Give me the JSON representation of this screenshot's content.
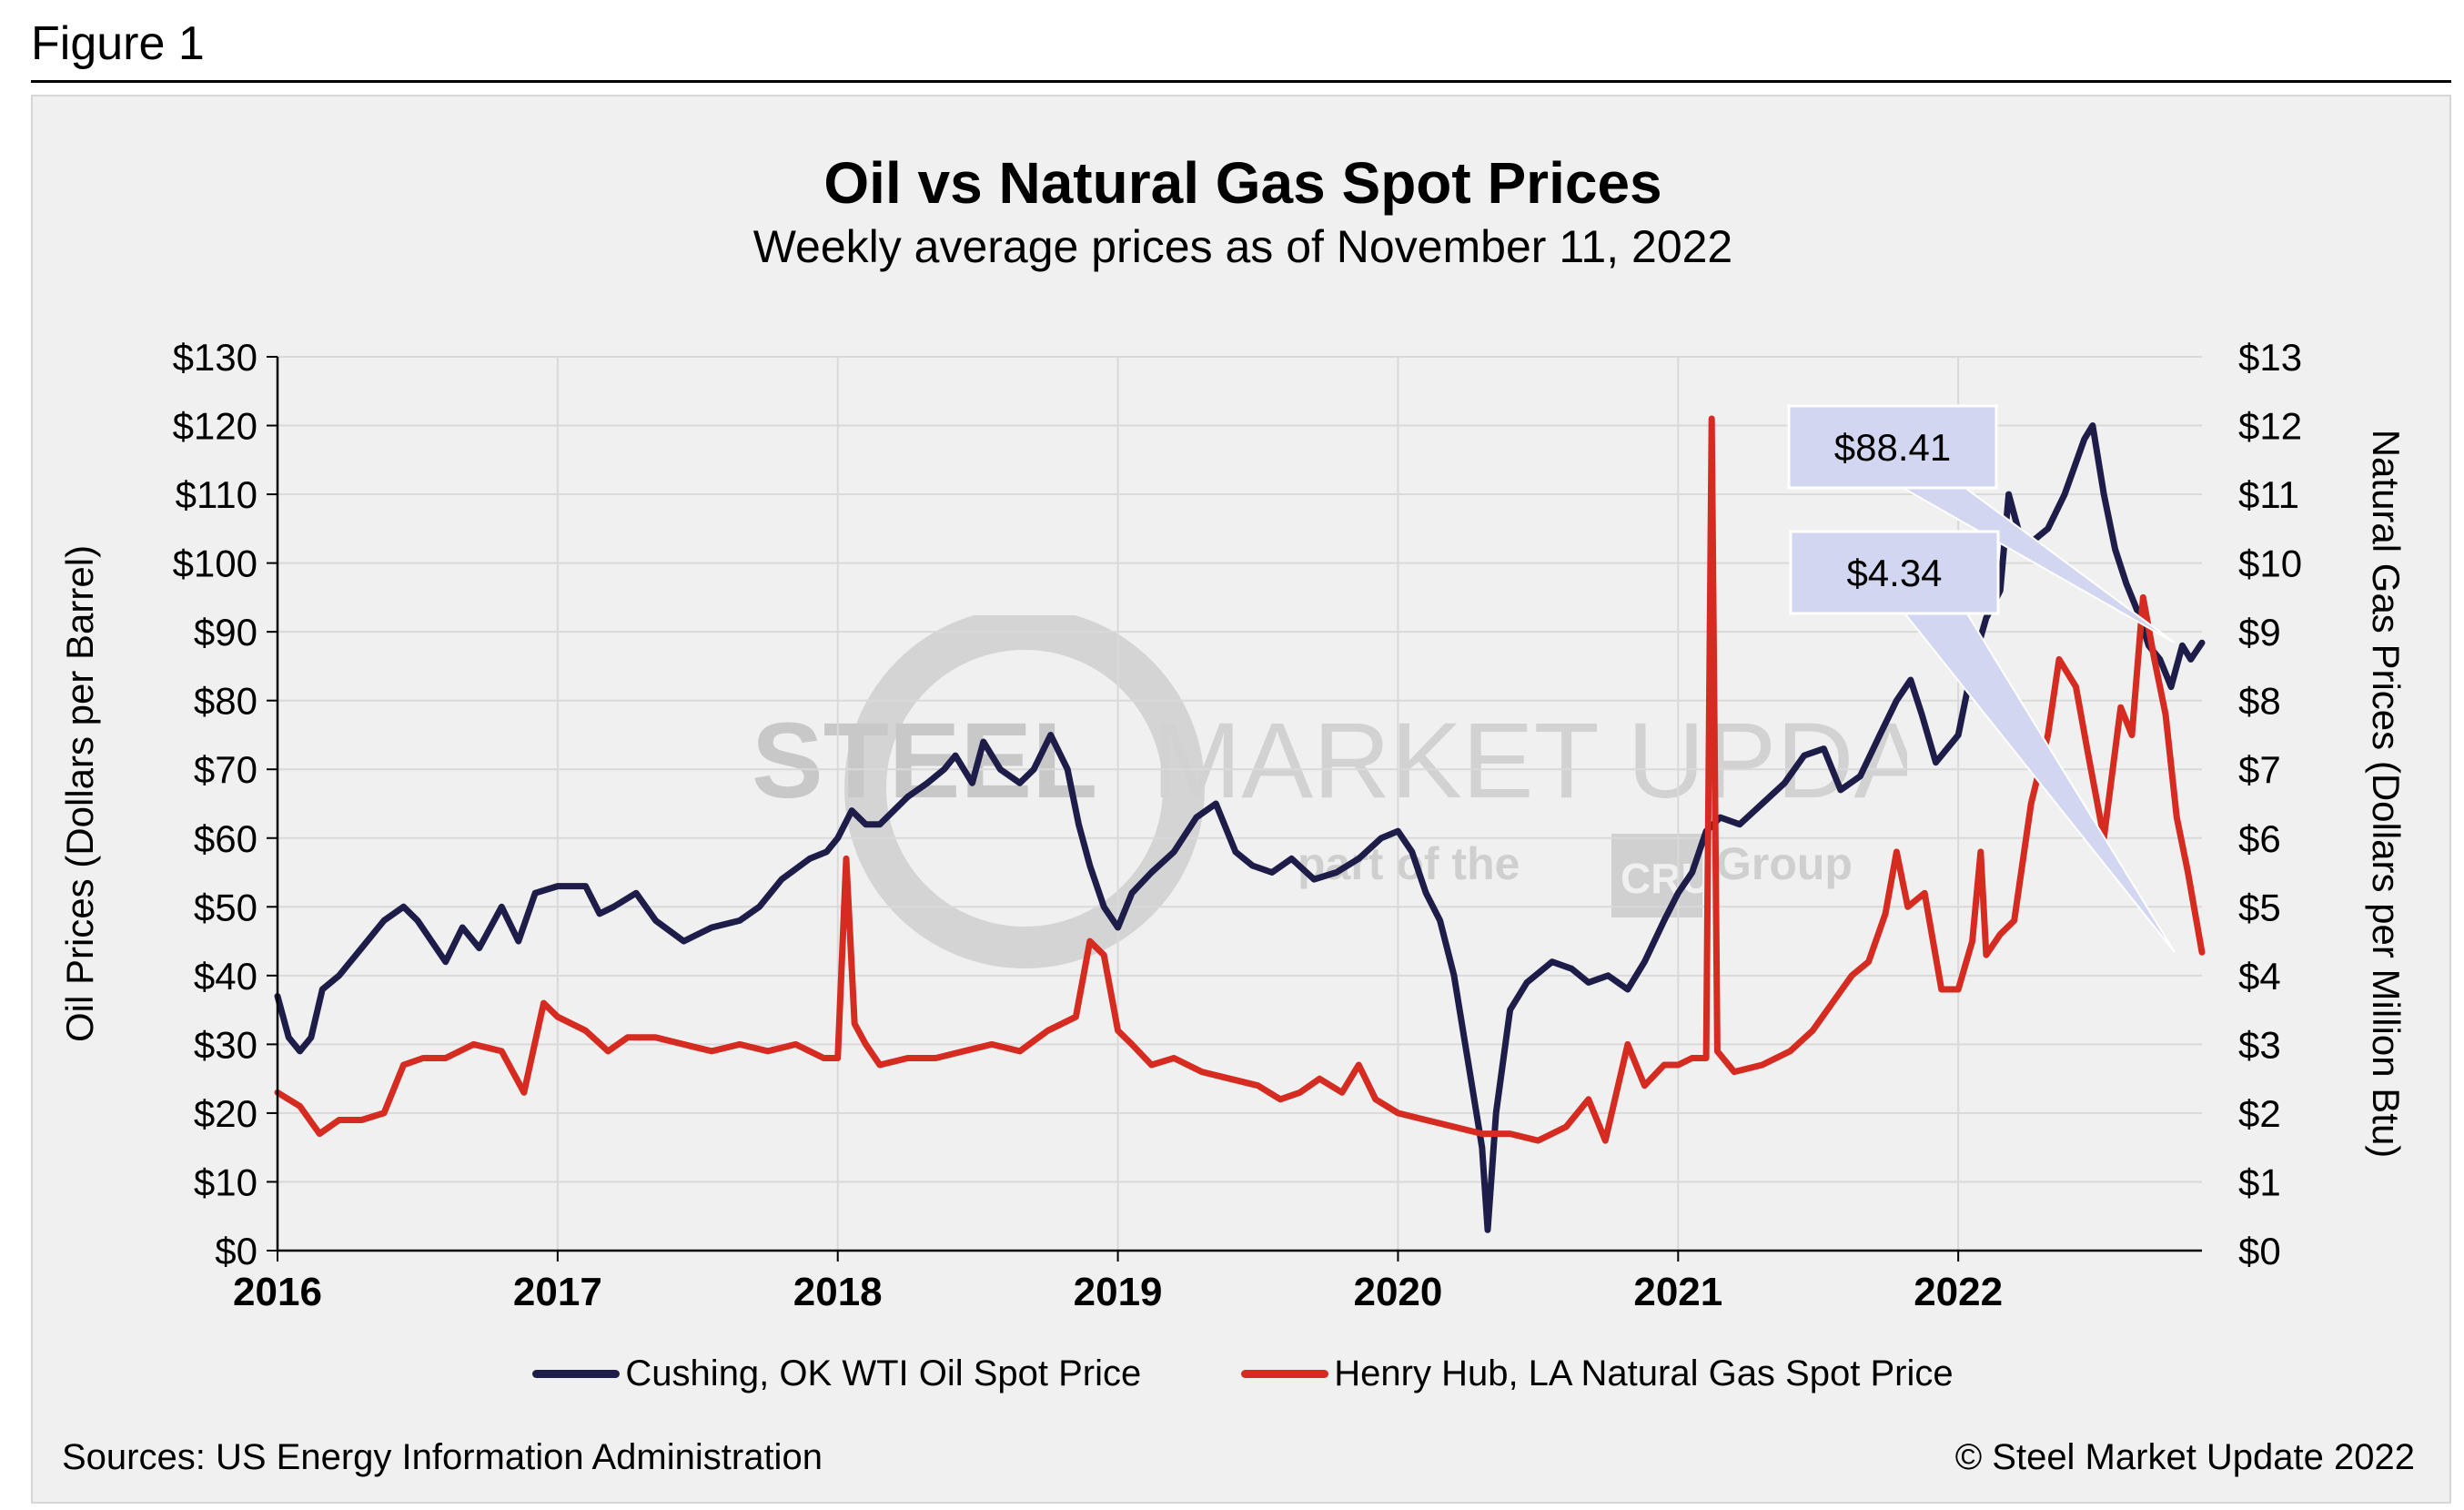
{
  "figure_label": "Figure 1",
  "source_text": "Sources: US Energy Information Administration",
  "copyright_text": "© Steel Market Update 2022",
  "watermark": {
    "main_bold": "STEEL",
    "main_light": "MARKET UPDATE",
    "sub_left": "part of the",
    "sub_logo": "CRU",
    "sub_right": "Group"
  },
  "colors": {
    "oil": "#1e1d4a",
    "gas": "#d52b20",
    "grid": "#d9d9d9",
    "callout_fill": "#d3d6f0",
    "panel": "#f0f0f0"
  },
  "chart_data": {
    "type": "line",
    "title": "Oil vs Natural Gas Spot Prices",
    "subtitle": "Weekly average prices as of November 11, 2022",
    "y_left_label": "Oil Prices (Dollars per Barrel)",
    "y_right_label": "Natural Gas Prices (Dollars per Million Btu)",
    "y_left_range": [
      0,
      130
    ],
    "y_right_range": [
      0,
      13
    ],
    "y_left_ticks": [
      "$0",
      "$10",
      "$20",
      "$30",
      "$40",
      "$50",
      "$60",
      "$70",
      "$80",
      "$90",
      "$100",
      "$110",
      "$120",
      "$130"
    ],
    "y_right_ticks": [
      "$0",
      "$1",
      "$2",
      "$3",
      "$4",
      "$5",
      "$6",
      "$7",
      "$8",
      "$9",
      "$10",
      "$11",
      "$12",
      "$13"
    ],
    "x_range": [
      2016,
      2022.87
    ],
    "x_ticks": [
      "2016",
      "2017",
      "2018",
      "2019",
      "2020",
      "2021",
      "2022"
    ],
    "grid": true,
    "legend_position": "bottom",
    "series": [
      {
        "name": "Cushing, OK WTI Oil Spot Price",
        "axis": "left",
        "points": [
          [
            2016.0,
            37
          ],
          [
            2016.04,
            31
          ],
          [
            2016.08,
            29
          ],
          [
            2016.12,
            31
          ],
          [
            2016.16,
            38
          ],
          [
            2016.22,
            40
          ],
          [
            2016.3,
            44
          ],
          [
            2016.38,
            48
          ],
          [
            2016.45,
            50
          ],
          [
            2016.5,
            48
          ],
          [
            2016.6,
            42
          ],
          [
            2016.66,
            47
          ],
          [
            2016.72,
            44
          ],
          [
            2016.8,
            50
          ],
          [
            2016.86,
            45
          ],
          [
            2016.92,
            52
          ],
          [
            2017.0,
            53
          ],
          [
            2017.1,
            53
          ],
          [
            2017.15,
            49
          ],
          [
            2017.2,
            50
          ],
          [
            2017.28,
            52
          ],
          [
            2017.35,
            48
          ],
          [
            2017.45,
            45
          ],
          [
            2017.55,
            47
          ],
          [
            2017.65,
            48
          ],
          [
            2017.72,
            50
          ],
          [
            2017.8,
            54
          ],
          [
            2017.9,
            57
          ],
          [
            2017.96,
            58
          ],
          [
            2018.0,
            60
          ],
          [
            2018.05,
            64
          ],
          [
            2018.1,
            62
          ],
          [
            2018.15,
            62
          ],
          [
            2018.25,
            66
          ],
          [
            2018.32,
            68
          ],
          [
            2018.38,
            70
          ],
          [
            2018.42,
            72
          ],
          [
            2018.48,
            68
          ],
          [
            2018.52,
            74
          ],
          [
            2018.58,
            70
          ],
          [
            2018.65,
            68
          ],
          [
            2018.7,
            70
          ],
          [
            2018.76,
            75
          ],
          [
            2018.82,
            70
          ],
          [
            2018.86,
            62
          ],
          [
            2018.9,
            56
          ],
          [
            2018.95,
            50
          ],
          [
            2019.0,
            47
          ],
          [
            2019.05,
            52
          ],
          [
            2019.12,
            55
          ],
          [
            2019.2,
            58
          ],
          [
            2019.28,
            63
          ],
          [
            2019.35,
            65
          ],
          [
            2019.42,
            58
          ],
          [
            2019.48,
            56
          ],
          [
            2019.55,
            55
          ],
          [
            2019.62,
            57
          ],
          [
            2019.7,
            54
          ],
          [
            2019.78,
            55
          ],
          [
            2019.86,
            57
          ],
          [
            2019.94,
            60
          ],
          [
            2020.0,
            61
          ],
          [
            2020.05,
            58
          ],
          [
            2020.1,
            52
          ],
          [
            2020.15,
            48
          ],
          [
            2020.2,
            40
          ],
          [
            2020.26,
            25
          ],
          [
            2020.3,
            15
          ],
          [
            2020.32,
            3
          ],
          [
            2020.35,
            20
          ],
          [
            2020.4,
            35
          ],
          [
            2020.46,
            39
          ],
          [
            2020.55,
            42
          ],
          [
            2020.62,
            41
          ],
          [
            2020.68,
            39
          ],
          [
            2020.75,
            40
          ],
          [
            2020.82,
            38
          ],
          [
            2020.88,
            42
          ],
          [
            2020.95,
            48
          ],
          [
            2021.0,
            52
          ],
          [
            2021.05,
            55
          ],
          [
            2021.1,
            61
          ],
          [
            2021.15,
            63
          ],
          [
            2021.22,
            62
          ],
          [
            2021.3,
            65
          ],
          [
            2021.38,
            68
          ],
          [
            2021.45,
            72
          ],
          [
            2021.52,
            73
          ],
          [
            2021.58,
            67
          ],
          [
            2021.65,
            69
          ],
          [
            2021.72,
            75
          ],
          [
            2021.78,
            80
          ],
          [
            2021.83,
            83
          ],
          [
            2021.87,
            78
          ],
          [
            2021.92,
            71
          ],
          [
            2022.0,
            75
          ],
          [
            2022.05,
            85
          ],
          [
            2022.1,
            92
          ],
          [
            2022.15,
            96
          ],
          [
            2022.18,
            110
          ],
          [
            2022.22,
            104
          ],
          [
            2022.26,
            103
          ],
          [
            2022.32,
            105
          ],
          [
            2022.38,
            110
          ],
          [
            2022.45,
            118
          ],
          [
            2022.48,
            120
          ],
          [
            2022.52,
            110
          ],
          [
            2022.56,
            102
          ],
          [
            2022.6,
            97
          ],
          [
            2022.64,
            93
          ],
          [
            2022.68,
            88
          ],
          [
            2022.72,
            86
          ],
          [
            2022.76,
            82
          ],
          [
            2022.8,
            88
          ],
          [
            2022.83,
            86
          ],
          [
            2022.87,
            88.41
          ]
        ]
      },
      {
        "name": "Henry Hub, LA Natural Gas Spot Price",
        "axis": "right",
        "points": [
          [
            2016.0,
            2.3
          ],
          [
            2016.08,
            2.1
          ],
          [
            2016.15,
            1.7
          ],
          [
            2016.22,
            1.9
          ],
          [
            2016.3,
            1.9
          ],
          [
            2016.38,
            2.0
          ],
          [
            2016.45,
            2.7
          ],
          [
            2016.52,
            2.8
          ],
          [
            2016.6,
            2.8
          ],
          [
            2016.7,
            3.0
          ],
          [
            2016.8,
            2.9
          ],
          [
            2016.88,
            2.3
          ],
          [
            2016.95,
            3.6
          ],
          [
            2017.0,
            3.4
          ],
          [
            2017.1,
            3.2
          ],
          [
            2017.18,
            2.9
          ],
          [
            2017.25,
            3.1
          ],
          [
            2017.35,
            3.1
          ],
          [
            2017.45,
            3.0
          ],
          [
            2017.55,
            2.9
          ],
          [
            2017.65,
            3.0
          ],
          [
            2017.75,
            2.9
          ],
          [
            2017.85,
            3.0
          ],
          [
            2017.95,
            2.8
          ],
          [
            2018.0,
            2.8
          ],
          [
            2018.03,
            5.7
          ],
          [
            2018.06,
            3.3
          ],
          [
            2018.1,
            3.0
          ],
          [
            2018.15,
            2.7
          ],
          [
            2018.25,
            2.8
          ],
          [
            2018.35,
            2.8
          ],
          [
            2018.45,
            2.9
          ],
          [
            2018.55,
            3.0
          ],
          [
            2018.65,
            2.9
          ],
          [
            2018.75,
            3.2
          ],
          [
            2018.85,
            3.4
          ],
          [
            2018.9,
            4.5
          ],
          [
            2018.95,
            4.3
          ],
          [
            2019.0,
            3.2
          ],
          [
            2019.05,
            3.0
          ],
          [
            2019.12,
            2.7
          ],
          [
            2019.2,
            2.8
          ],
          [
            2019.3,
            2.6
          ],
          [
            2019.4,
            2.5
          ],
          [
            2019.5,
            2.4
          ],
          [
            2019.58,
            2.2
          ],
          [
            2019.65,
            2.3
          ],
          [
            2019.72,
            2.5
          ],
          [
            2019.8,
            2.3
          ],
          [
            2019.86,
            2.7
          ],
          [
            2019.92,
            2.2
          ],
          [
            2020.0,
            2.0
          ],
          [
            2020.1,
            1.9
          ],
          [
            2020.2,
            1.8
          ],
          [
            2020.3,
            1.7
          ],
          [
            2020.4,
            1.7
          ],
          [
            2020.5,
            1.6
          ],
          [
            2020.6,
            1.8
          ],
          [
            2020.68,
            2.2
          ],
          [
            2020.74,
            1.6
          ],
          [
            2020.82,
            3.0
          ],
          [
            2020.88,
            2.4
          ],
          [
            2020.95,
            2.7
          ],
          [
            2021.0,
            2.7
          ],
          [
            2021.05,
            2.8
          ],
          [
            2021.1,
            2.8
          ],
          [
            2021.12,
            12.1
          ],
          [
            2021.14,
            2.9
          ],
          [
            2021.2,
            2.6
          ],
          [
            2021.3,
            2.7
          ],
          [
            2021.4,
            2.9
          ],
          [
            2021.48,
            3.2
          ],
          [
            2021.55,
            3.6
          ],
          [
            2021.62,
            4.0
          ],
          [
            2021.68,
            4.2
          ],
          [
            2021.74,
            4.9
          ],
          [
            2021.78,
            5.8
          ],
          [
            2021.82,
            5.0
          ],
          [
            2021.88,
            5.2
          ],
          [
            2021.94,
            3.8
          ],
          [
            2022.0,
            3.8
          ],
          [
            2022.05,
            4.5
          ],
          [
            2022.08,
            5.8
          ],
          [
            2022.1,
            4.3
          ],
          [
            2022.15,
            4.6
          ],
          [
            2022.2,
            4.8
          ],
          [
            2022.26,
            6.5
          ],
          [
            2022.32,
            7.5
          ],
          [
            2022.36,
            8.6
          ],
          [
            2022.42,
            8.2
          ],
          [
            2022.46,
            7.3
          ],
          [
            2022.52,
            6.0
          ],
          [
            2022.58,
            7.9
          ],
          [
            2022.62,
            7.5
          ],
          [
            2022.66,
            9.5
          ],
          [
            2022.7,
            8.6
          ],
          [
            2022.74,
            7.8
          ],
          [
            2022.78,
            6.3
          ],
          [
            2022.82,
            5.5
          ],
          [
            2022.87,
            4.34
          ]
        ]
      }
    ],
    "annotations": [
      {
        "label": "$88.41",
        "series": "Cushing, OK WTI Oil Spot Price",
        "x": 2022.87,
        "y": 88.41
      },
      {
        "label": "$4.34",
        "series": "Henry Hub, LA Natural Gas Spot Price",
        "x": 2022.87,
        "y": 4.34
      }
    ]
  }
}
